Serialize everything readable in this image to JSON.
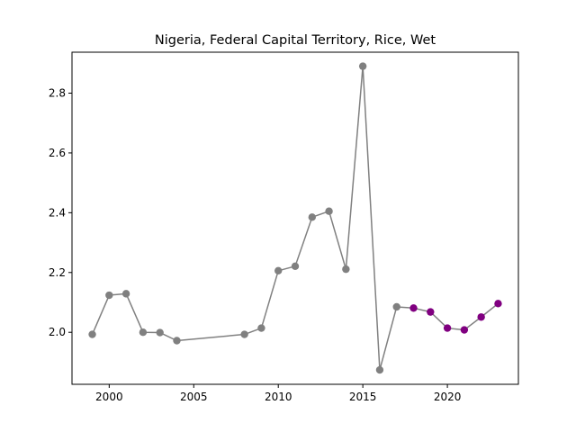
{
  "chart_data": {
    "type": "line",
    "title": "Nigeria, Federal Capital Territory, Rice, Wet",
    "xlabel": "",
    "ylabel": "",
    "xlim": [
      1997.8,
      2024.2
    ],
    "ylim": [
      1.826,
      2.937
    ],
    "x_ticks": [
      2000,
      2005,
      2010,
      2015,
      2020
    ],
    "x_tick_labels": [
      "2000",
      "2005",
      "2010",
      "2015",
      "2020"
    ],
    "y_ticks": [
      2.0,
      2.2,
      2.4,
      2.6,
      2.8
    ],
    "y_tick_labels": [
      "2.0",
      "2.2",
      "2.4",
      "2.6",
      "2.8"
    ],
    "grid": false,
    "line_color": "#808080",
    "series": [
      {
        "color": "#808080",
        "points": [
          {
            "x": 1999,
            "y": 1.993
          },
          {
            "x": 2000,
            "y": 2.124
          },
          {
            "x": 2001,
            "y": 2.129
          },
          {
            "x": 2002,
            "y": 2.0
          },
          {
            "x": 2003,
            "y": 1.999
          },
          {
            "x": 2004,
            "y": 1.972
          },
          {
            "x": 2008,
            "y": 1.993
          },
          {
            "x": 2009,
            "y": 2.014
          },
          {
            "x": 2010,
            "y": 2.206
          },
          {
            "x": 2011,
            "y": 2.221
          },
          {
            "x": 2012,
            "y": 2.385
          },
          {
            "x": 2013,
            "y": 2.405
          },
          {
            "x": 2014,
            "y": 2.211
          },
          {
            "x": 2015,
            "y": 2.89
          },
          {
            "x": 2016,
            "y": 1.874
          },
          {
            "x": 2017,
            "y": 2.085
          }
        ]
      },
      {
        "color": "#800080",
        "points": [
          {
            "x": 2018,
            "y": 2.081
          },
          {
            "x": 2019,
            "y": 2.068
          },
          {
            "x": 2020,
            "y": 2.014
          },
          {
            "x": 2021,
            "y": 2.008
          },
          {
            "x": 2022,
            "y": 2.051
          },
          {
            "x": 2023,
            "y": 2.096
          }
        ]
      }
    ]
  }
}
